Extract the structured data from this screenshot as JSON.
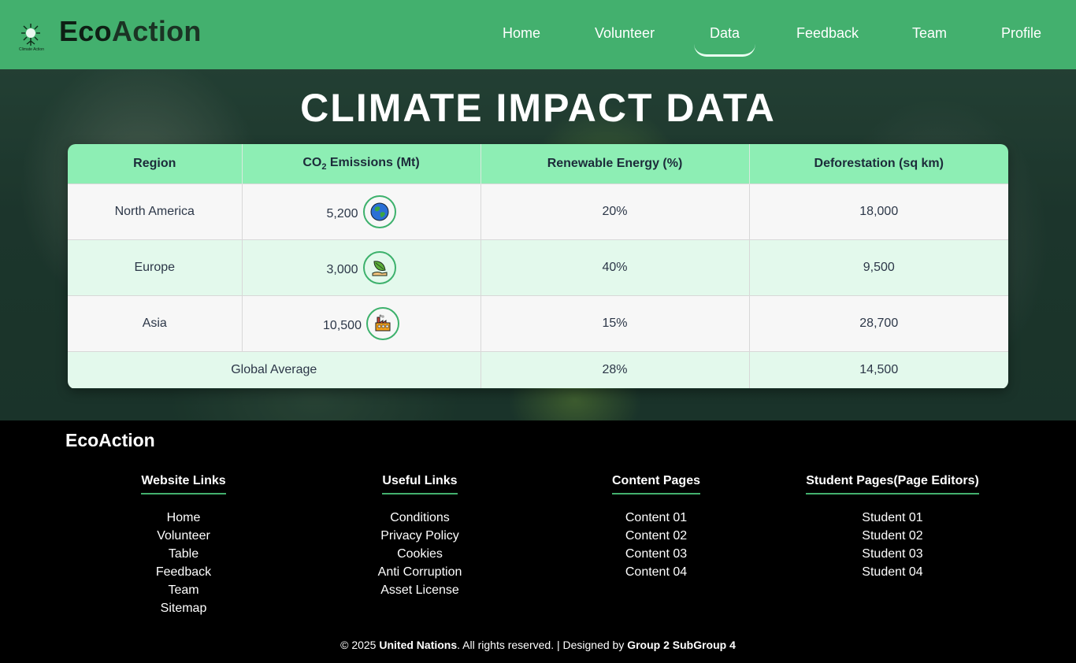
{
  "nav": {
    "logo_caption": "Climate Action",
    "brand_eco": "Eco",
    "brand_action": "Action",
    "links": [
      {
        "label": "Home"
      },
      {
        "label": "Volunteer"
      },
      {
        "label": "Data",
        "active": true
      },
      {
        "label": "Feedback"
      },
      {
        "label": "Team"
      },
      {
        "label": "Profile"
      }
    ]
  },
  "main": {
    "title": "CLIMATE IMPACT DATA",
    "table": {
      "headers": {
        "region": "Region",
        "co2_prefix": "CO",
        "co2_sub": "2",
        "co2_suffix": " Emissions (Mt)",
        "renewable": "Renewable Energy (%)",
        "deforestation": "Deforestation (sq km)"
      },
      "rows": [
        {
          "region": "North America",
          "co2": "5,200",
          "icon": "globe-icon",
          "renewable": "20%",
          "deforestation": "18,000"
        },
        {
          "region": "Europe",
          "co2": "3,000",
          "icon": "leaf-hand-icon",
          "renewable": "40%",
          "deforestation": "9,500"
        },
        {
          "region": "Asia",
          "co2": "10,500",
          "icon": "factory-icon",
          "renewable": "15%",
          "deforestation": "28,700"
        }
      ],
      "footer": {
        "label": "Global Average",
        "renewable": "28%",
        "deforestation": "14,500"
      }
    }
  },
  "footer": {
    "brand": "EcoAction",
    "columns": [
      {
        "title": "Website Links",
        "items": [
          "Home",
          "Volunteer",
          "Table",
          "Feedback",
          "Team",
          "Sitemap"
        ]
      },
      {
        "title": "Useful Links",
        "items": [
          "Conditions",
          "Privacy Policy",
          "Cookies",
          "Anti Corruption",
          "Asset License"
        ]
      },
      {
        "title": "Content Pages",
        "items": [
          "Content 01",
          "Content 02",
          "Content 03",
          "Content 04"
        ]
      },
      {
        "title": "Student Pages(Page Editors)",
        "items": [
          "Student 01",
          "Student 02",
          "Student 03",
          "Student 04"
        ]
      }
    ],
    "copyright": {
      "prefix": "© 2025 ",
      "org": "United Nations",
      "middle": ". All rights reserved. | Designed by ",
      "designer": "Group 2 SubGroup 4"
    }
  },
  "colors": {
    "nav_bg": "#43b06e",
    "table_header": "#8deeb4",
    "row_alt": "#e3f9ec",
    "accent": "#3db16c"
  }
}
